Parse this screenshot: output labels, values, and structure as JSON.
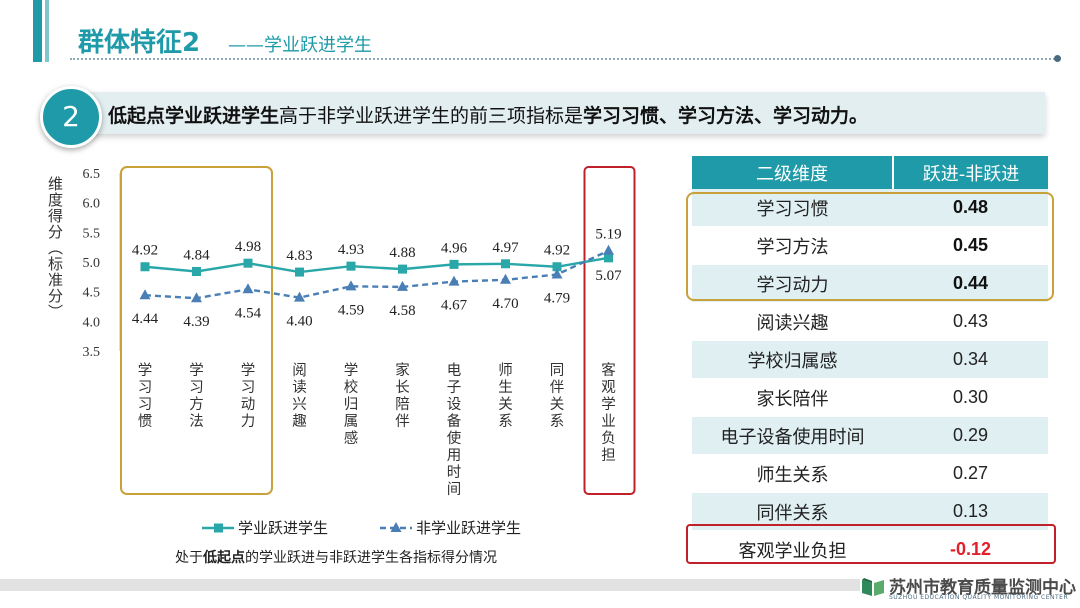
{
  "header": {
    "title_main": "群体特征2",
    "title_sub": "——学业跃进学生"
  },
  "banner": {
    "number": "2",
    "text_bold1": "低起点学业跃进学生",
    "text_normal": "高于非学业跃进学生的前三项指标是",
    "text_bold2": "学习习惯、学习方法、学习动力。"
  },
  "chart_data": {
    "type": "line",
    "ylabel": "维度得分（标准分）",
    "ylim": [
      3.5,
      6.5
    ],
    "yticks": [
      "6.5",
      "6.0",
      "5.5",
      "5.0",
      "4.5",
      "4.0",
      "3.5"
    ],
    "categories": [
      "学习习惯",
      "学习方法",
      "学习动力",
      "阅读兴趣",
      "学校归属感",
      "家长陪伴",
      "电子设备使用时间",
      "师生关系",
      "同伴关系",
      "客观学业负担"
    ],
    "series": [
      {
        "name": "学业跃进学生",
        "color": "#2aa7a8",
        "style": "solid",
        "marker": "square",
        "values": [
          4.92,
          4.84,
          4.98,
          4.83,
          4.93,
          4.88,
          4.96,
          4.97,
          4.92,
          5.07
        ]
      },
      {
        "name": "非学业跃进学生",
        "color": "#4a7fb5",
        "style": "dashed",
        "marker": "triangle",
        "values": [
          4.44,
          4.39,
          4.54,
          4.4,
          4.59,
          4.58,
          4.67,
          4.7,
          4.79,
          5.19
        ]
      }
    ],
    "caption_prefix": "处于",
    "caption_bold": "低起点",
    "caption_suffix": "的学业跃进与非跃进学生各指标得分情况",
    "highlight_gold_color": "#c9a13a",
    "highlight_red_color": "#c0202a"
  },
  "table": {
    "headers": [
      "二级维度",
      "跃进-非跃进"
    ],
    "rows": [
      {
        "label": "学习习惯",
        "value": "0.48",
        "emphasis": "bold"
      },
      {
        "label": "学习方法",
        "value": "0.45",
        "emphasis": "bold"
      },
      {
        "label": "学习动力",
        "value": "0.44",
        "emphasis": "bold"
      },
      {
        "label": "阅读兴趣",
        "value": "0.43",
        "emphasis": "none"
      },
      {
        "label": "学校归属感",
        "value": "0.34",
        "emphasis": "none"
      },
      {
        "label": "家长陪伴",
        "value": "0.30",
        "emphasis": "none"
      },
      {
        "label": "电子设备使用时间",
        "value": "0.29",
        "emphasis": "none"
      },
      {
        "label": "师生关系",
        "value": "0.27",
        "emphasis": "none"
      },
      {
        "label": "同伴关系",
        "value": "0.13",
        "emphasis": "none"
      },
      {
        "label": "客观学业负担",
        "value": "-0.12",
        "emphasis": "negative"
      }
    ]
  },
  "footer": {
    "org_name": "苏州市教育质量监测中心",
    "org_name_en": "SUZHOU EDUCATION QUALITY MONITORING CENTER"
  },
  "colors": {
    "accent": "#1f9aa8",
    "banner_bg": "#e3eef1",
    "table_stripe": "#dfeff2",
    "negative": "#e0202a"
  }
}
